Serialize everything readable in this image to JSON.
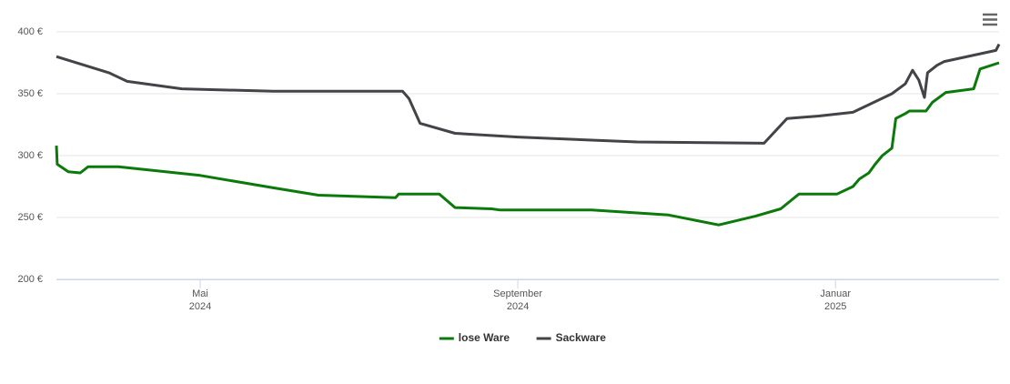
{
  "chart_data": {
    "type": "line",
    "xlim": [
      3.19,
      15.06
    ],
    "xticks": [
      {
        "value": 5,
        "label": "Mai 2024"
      },
      {
        "value": 9,
        "label": "September 2024"
      },
      {
        "value": 13,
        "label": "Januar 2025"
      }
    ],
    "ylim": [
      200,
      400
    ],
    "yticks": [
      {
        "value": 200,
        "label": "200 €"
      },
      {
        "value": 250,
        "label": "250 €"
      },
      {
        "value": 300,
        "label": "300 €"
      },
      {
        "value": 350,
        "label": "350 €"
      },
      {
        "value": 400,
        "label": "400 €"
      }
    ],
    "grid": true,
    "legend": "bottom",
    "series": [
      {
        "name": "lose Ware",
        "color": "#0b7a0b",
        "x": [
          3.19,
          3.2,
          3.34,
          3.49,
          3.59,
          3.97,
          5.0,
          5.92,
          6.49,
          7.46,
          7.5,
          8.01,
          8.21,
          8.67,
          8.78,
          9.93,
          10.9,
          11.53,
          11.99,
          12.31,
          12.54,
          13.02,
          13.22,
          13.3,
          13.42,
          13.5,
          13.59,
          13.71,
          13.76,
          13.88,
          13.93,
          14.14,
          14.22,
          14.39,
          14.74,
          14.82,
          15.06
        ],
        "values": [
          308,
          293,
          287,
          286,
          291,
          291,
          284,
          274,
          268,
          266,
          269,
          269,
          258,
          257,
          256,
          256,
          252,
          244,
          251,
          257,
          269,
          269,
          275,
          281,
          286,
          293,
          300,
          306,
          330,
          334,
          336,
          336,
          343,
          351,
          354,
          370,
          375
        ]
      },
      {
        "name": "Sackware",
        "color": "#434348",
        "x": [
          3.19,
          3.85,
          4.08,
          4.77,
          5.92,
          7.55,
          7.63,
          7.77,
          8.21,
          9.0,
          10.5,
          12.1,
          12.39,
          12.79,
          13.22,
          13.71,
          13.88,
          13.97,
          14.05,
          14.12,
          14.16,
          14.28,
          14.37,
          15.02,
          15.06
        ],
        "values": [
          380,
          367,
          360,
          354,
          352,
          352,
          346,
          326,
          318,
          315,
          311,
          310,
          330,
          332,
          335,
          350,
          358,
          369,
          361,
          347,
          367,
          373,
          376,
          385,
          390
        ]
      }
    ]
  }
}
